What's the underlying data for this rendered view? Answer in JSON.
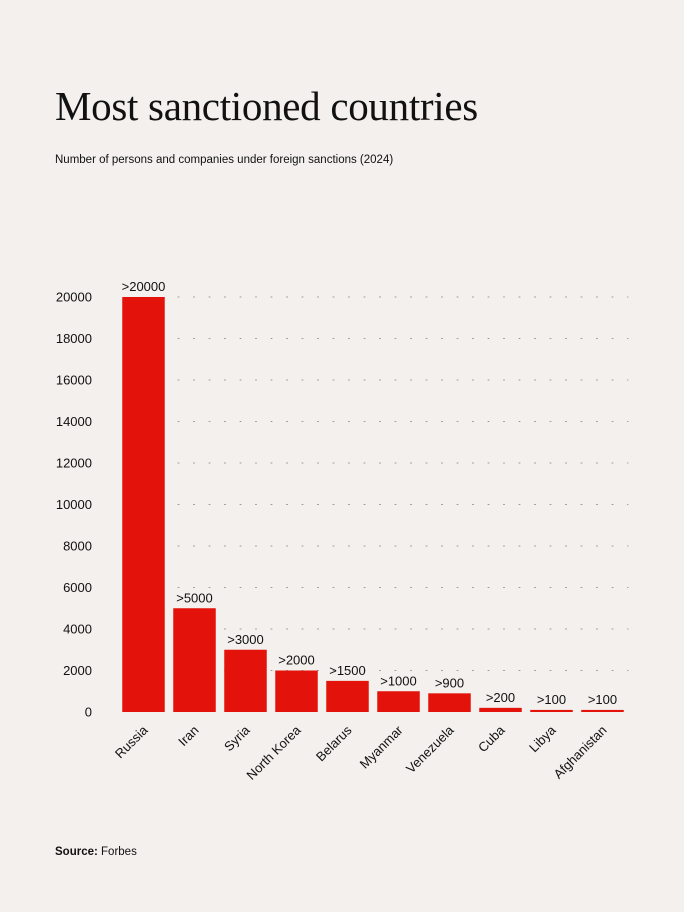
{
  "title": "Most sanctioned countries",
  "subtitle": "Number of persons and companies under foreign sanctions (2024)",
  "source": {
    "label": "Source:",
    "value": "Forbes"
  },
  "colors": {
    "bar": "#e3120b",
    "background": "#f3f0ed",
    "grid": "#9a9a9a",
    "text": "#111111"
  },
  "chart_data": {
    "type": "bar",
    "categories": [
      "Russia",
      "Iran",
      "Syria",
      "North Korea",
      "Belarus",
      "Myanmar",
      "Venezuela",
      "Cuba",
      "Libya",
      "Afghanistan"
    ],
    "values": [
      20000,
      5000,
      3000,
      2000,
      1500,
      1000,
      900,
      200,
      100,
      100
    ],
    "data_labels": [
      ">20000",
      ">5000",
      ">3000",
      ">2000",
      ">1500",
      ">1000",
      ">900",
      ">200",
      ">100",
      ">100"
    ],
    "yticks": [
      0,
      2000,
      4000,
      6000,
      8000,
      10000,
      12000,
      14000,
      16000,
      18000,
      20000
    ],
    "ylim": [
      0,
      20000
    ],
    "grid": "dotted horizontal",
    "xlabel": "",
    "ylabel": ""
  }
}
